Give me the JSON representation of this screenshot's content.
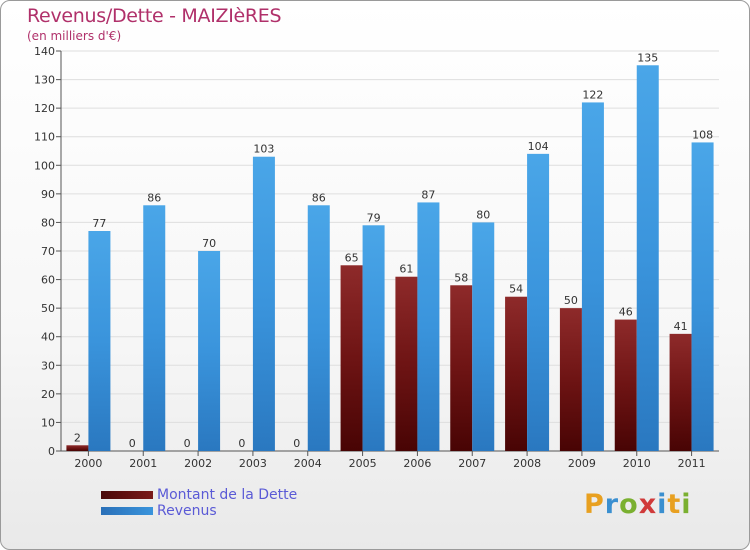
{
  "title": "Revenus/Dette - MAIZIèRES",
  "subtitle": "(en milliers d'€)",
  "colors": {
    "debt": "#7a1a1a",
    "revenue": "#3a94dc",
    "title": "#b0306a",
    "legend_text": "#5a5ad6"
  },
  "legend": {
    "debt_label": "Montant de la Dette",
    "revenue_label": "Revenus"
  },
  "logo": {
    "letters": [
      "P",
      "r",
      "o",
      "x",
      "i",
      "t",
      "i"
    ],
    "colors": [
      "#e8a020",
      "#3a8fd0",
      "#7ab030",
      "#d03a3a",
      "#3a8fd0",
      "#e8a020",
      "#7ab030"
    ]
  },
  "chart_data": {
    "type": "bar",
    "categories": [
      "2000",
      "2001",
      "2002",
      "2003",
      "2004",
      "2005",
      "2006",
      "2007",
      "2008",
      "2009",
      "2010",
      "2011"
    ],
    "series": [
      {
        "name": "Montant de la Dette",
        "values": [
          2,
          0,
          0,
          0,
          0,
          65,
          61,
          58,
          54,
          50,
          46,
          41
        ]
      },
      {
        "name": "Revenus",
        "values": [
          77,
          86,
          70,
          103,
          86,
          79,
          87,
          80,
          104,
          122,
          135,
          108
        ]
      }
    ],
    "ylim": [
      0,
      140
    ],
    "yticks": [
      0,
      10,
      20,
      30,
      40,
      50,
      60,
      70,
      80,
      90,
      100,
      110,
      120,
      130,
      140
    ],
    "grid": true,
    "legend_position": "bottom-left"
  }
}
